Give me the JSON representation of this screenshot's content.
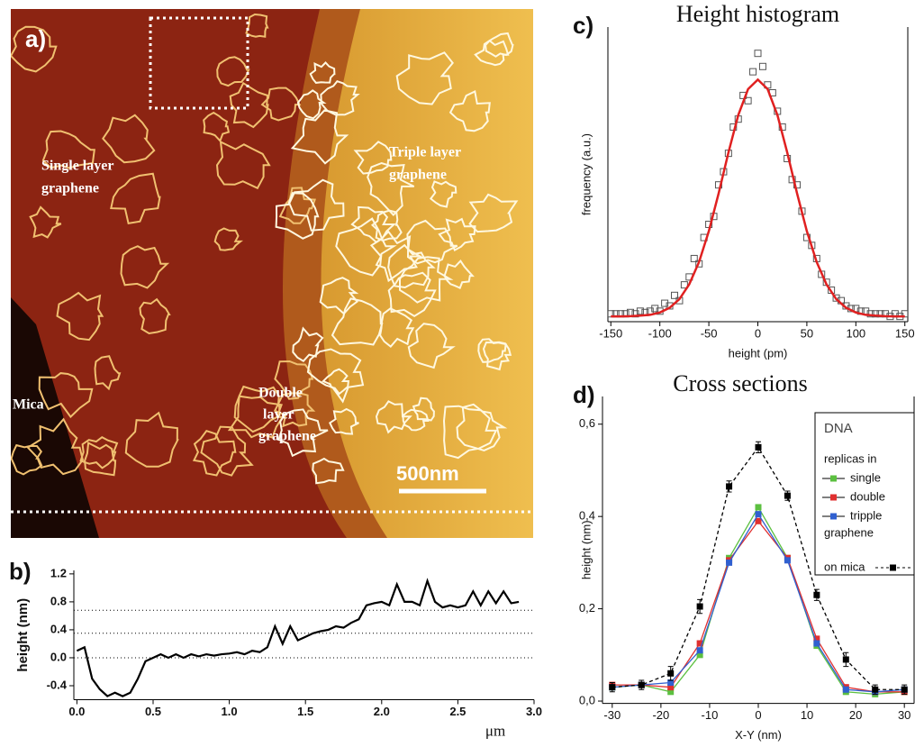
{
  "image_panel": {
    "label": "a)",
    "annotations": [
      [
        "Single layer",
        "graphene"
      ],
      [
        "Triple layer",
        "graphene"
      ],
      [
        "Double",
        "layer",
        "graphene"
      ],
      [
        "Mica"
      ]
    ],
    "scale_bar": "500nm"
  },
  "chart_data": [
    {
      "type": "line",
      "panel_label": "b)",
      "ylabel": "height (nm)",
      "xlabel": "μm",
      "x": [
        0,
        0.05,
        0.1,
        0.15,
        0.2,
        0.25,
        0.3,
        0.35,
        0.4,
        0.45,
        0.5,
        0.55,
        0.6,
        0.65,
        0.7,
        0.75,
        0.8,
        0.85,
        0.9,
        0.95,
        1.0,
        1.05,
        1.1,
        1.15,
        1.2,
        1.25,
        1.3,
        1.35,
        1.4,
        1.45,
        1.5,
        1.55,
        1.6,
        1.65,
        1.7,
        1.75,
        1.8,
        1.85,
        1.9,
        1.95,
        2.0,
        2.05,
        2.1,
        2.15,
        2.2,
        2.25,
        2.3,
        2.35,
        2.4,
        2.45,
        2.5,
        2.55,
        2.6,
        2.65,
        2.7,
        2.75,
        2.8,
        2.85,
        2.9
      ],
      "series": [
        {
          "color": "#000000",
          "values": [
            0.1,
            0.15,
            -0.3,
            -0.45,
            -0.55,
            -0.5,
            -0.55,
            -0.5,
            -0.3,
            -0.05,
            0.0,
            0.05,
            0.0,
            0.05,
            0.0,
            0.05,
            0.02,
            0.05,
            0.03,
            0.05,
            0.06,
            0.08,
            0.05,
            0.1,
            0.08,
            0.15,
            0.45,
            0.2,
            0.45,
            0.25,
            0.3,
            0.35,
            0.38,
            0.4,
            0.45,
            0.43,
            0.5,
            0.55,
            0.75,
            0.78,
            0.8,
            0.75,
            1.05,
            0.8,
            0.8,
            0.75,
            1.1,
            0.8,
            0.72,
            0.75,
            0.72,
            0.75,
            0.95,
            0.75,
            0.95,
            0.78,
            0.95,
            0.78,
            0.8
          ]
        }
      ],
      "xlim": [
        -0.02,
        3.0
      ],
      "ylim": [
        -0.6,
        1.25
      ],
      "xticks": [
        {
          "value": 0,
          "label": "0.0"
        },
        0.5,
        {
          "value": 1,
          "label": "1.0"
        },
        1.5,
        {
          "value": 2,
          "label": "2.0"
        },
        2.5,
        {
          "value": 3,
          "label": "3.0"
        }
      ],
      "yticks": [
        -0.4,
        {
          "value": 0,
          "label": "0.0"
        },
        0.4,
        0.8,
        1.2
      ],
      "reference_lines": [
        0.68,
        0.35,
        0
      ]
    },
    {
      "type": "scatter",
      "panel_label": "c)",
      "title": "Height histogram",
      "xlabel": "height (pm)",
      "ylabel": "frequency (a.u.)",
      "x": [
        -150,
        -145,
        -140,
        -135,
        -130,
        -125,
        -120,
        -115,
        -110,
        -105,
        -100,
        -95,
        -90,
        -85,
        -80,
        -75,
        -70,
        -65,
        -60,
        -55,
        -50,
        -45,
        -40,
        -35,
        -30,
        -25,
        -20,
        -15,
        -10,
        -5,
        0,
        5,
        10,
        15,
        20,
        25,
        30,
        35,
        40,
        45,
        50,
        55,
        60,
        65,
        70,
        75,
        80,
        85,
        90,
        95,
        100,
        105,
        110,
        115,
        120,
        125,
        130,
        135,
        140,
        145,
        150
      ],
      "values": [
        0.01,
        0.01,
        0.01,
        0.01,
        0.015,
        0.01,
        0.02,
        0.015,
        0.02,
        0.03,
        0.02,
        0.05,
        0.04,
        0.08,
        0.06,
        0.12,
        0.15,
        0.22,
        0.2,
        0.3,
        0.35,
        0.38,
        0.5,
        0.55,
        0.62,
        0.72,
        0.75,
        0.84,
        0.82,
        0.93,
        1.0,
        0.95,
        0.88,
        0.85,
        0.78,
        0.72,
        0.6,
        0.52,
        0.5,
        0.4,
        0.3,
        0.27,
        0.22,
        0.16,
        0.13,
        0.1,
        0.07,
        0.06,
        0.04,
        0.03,
        0.03,
        0.02,
        0.02,
        0.01,
        0.01,
        0.01,
        0.01,
        0.0,
        0.01,
        0.0,
        0.01
      ],
      "color": "#555555",
      "fit": {
        "x": [
          -150,
          -140,
          -130,
          -120,
          -110,
          -100,
          -90,
          -80,
          -70,
          -60,
          -50,
          -40,
          -30,
          -20,
          -10,
          0,
          10,
          20,
          30,
          40,
          50,
          60,
          70,
          80,
          90,
          100,
          110,
          120,
          130,
          140,
          150
        ],
        "values": [
          0,
          0,
          0.001,
          0.003,
          0.006,
          0.015,
          0.033,
          0.066,
          0.122,
          0.207,
          0.324,
          0.468,
          0.623,
          0.765,
          0.864,
          0.9,
          0.864,
          0.765,
          0.623,
          0.468,
          0.324,
          0.207,
          0.122,
          0.066,
          0.033,
          0.015,
          0.006,
          0.003,
          0.001,
          0,
          0
        ],
        "color": "#e02020"
      },
      "xlim": [
        -153,
        153
      ],
      "ylim": [
        -0.02,
        1.1
      ],
      "xticks": [
        -150,
        -100,
        -50,
        0,
        50,
        100,
        150
      ]
    },
    {
      "type": "line",
      "panel_label": "d)",
      "title": "Cross sections",
      "xlabel": "X-Y (nm)",
      "ylabel": "height (nm)",
      "legend_title": "DNA",
      "legend_heading": "replicas in",
      "legend_footer": "graphene",
      "x": [
        -30,
        -24,
        -18,
        -12,
        -6,
        0,
        6,
        12,
        18,
        24,
        30
      ],
      "series": [
        {
          "name": "single",
          "color": "#5cc040",
          "values": [
            0.03,
            0.035,
            0.02,
            0.1,
            0.31,
            0.42,
            0.31,
            0.12,
            0.02,
            0.015,
            0.02
          ]
        },
        {
          "name": "double",
          "color": "#e03030",
          "values": [
            0.035,
            0.035,
            0.03,
            0.125,
            0.305,
            0.39,
            0.31,
            0.135,
            0.03,
            0.02,
            0.02
          ]
        },
        {
          "name": "tripple",
          "color": "#3060d0",
          "values": [
            0.03,
            0.035,
            0.04,
            0.11,
            0.3,
            0.405,
            0.305,
            0.125,
            0.025,
            0.02,
            0.025
          ]
        },
        {
          "name": "on mica",
          "color": "#000000",
          "dashed": true,
          "values": [
            0.03,
            0.035,
            0.06,
            0.205,
            0.465,
            0.55,
            0.445,
            0.23,
            0.09,
            0.025,
            0.025
          ],
          "errors": [
            0.01,
            0.01,
            0.015,
            0.015,
            0.012,
            0.012,
            0.01,
            0.012,
            0.015,
            0.01,
            0.01
          ]
        }
      ],
      "xlim": [
        -32,
        32
      ],
      "ylim": [
        -0.005,
        0.66
      ],
      "xticks": [
        -30,
        -20,
        -10,
        0,
        10,
        20,
        30
      ],
      "yticks": [
        {
          "value": 0,
          "label": "0,0"
        },
        {
          "value": 0.2,
          "label": "0,2"
        },
        {
          "value": 0.4,
          "label": "0,4"
        },
        {
          "value": 0.6,
          "label": "0,6"
        }
      ]
    }
  ]
}
